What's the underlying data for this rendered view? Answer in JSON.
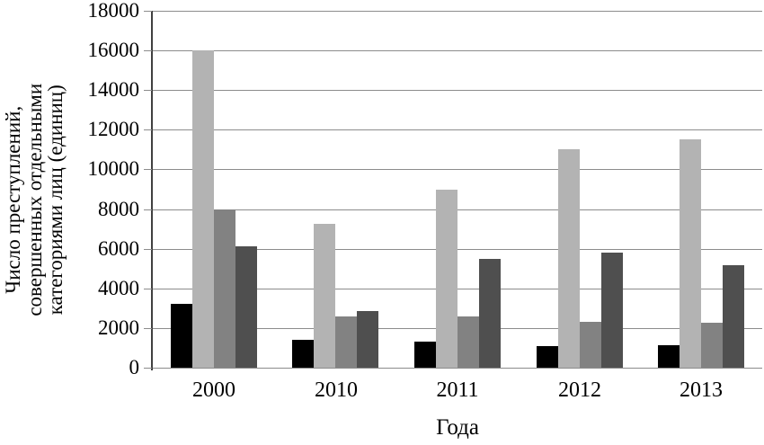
{
  "chart_data": {
    "type": "bar",
    "title": "",
    "categories": [
      "2000",
      "2010",
      "2011",
      "2012",
      "2013"
    ],
    "series": [
      {
        "name": "black",
        "color": "#000000",
        "values": [
          3200,
          1400,
          1300,
          1100,
          1150
        ]
      },
      {
        "name": "light-gray",
        "color": "#b3b3b3",
        "values": [
          16000,
          7250,
          9000,
          11000,
          11500
        ]
      },
      {
        "name": "medium-gray",
        "color": "#828282",
        "values": [
          8000,
          2600,
          2600,
          2300,
          2250
        ]
      },
      {
        "name": "dark-gray",
        "color": "#4f4f4f",
        "values": [
          6100,
          2850,
          5500,
          5800,
          5150
        ]
      }
    ],
    "xlabel": "Года",
    "ylabel": "Число преступлений, совершенных отдельными категориями лиц (единиц)",
    "ylabel_lines": [
      "Число преступлений,",
      "совершенных отдельными",
      "категориями лиц (единиц)"
    ],
    "ylim": [
      0,
      18000
    ],
    "ytick_step": 2000,
    "ytick_labels": [
      "0",
      "2000",
      "4000",
      "6000",
      "8000",
      "10000",
      "12000",
      "14000",
      "16000",
      "18000"
    ],
    "grid": true,
    "legend": false,
    "colors": {
      "gridline": "#8c8c8c",
      "axis_line": "#404040",
      "text": "#000000",
      "background": "#ffffff"
    }
  }
}
